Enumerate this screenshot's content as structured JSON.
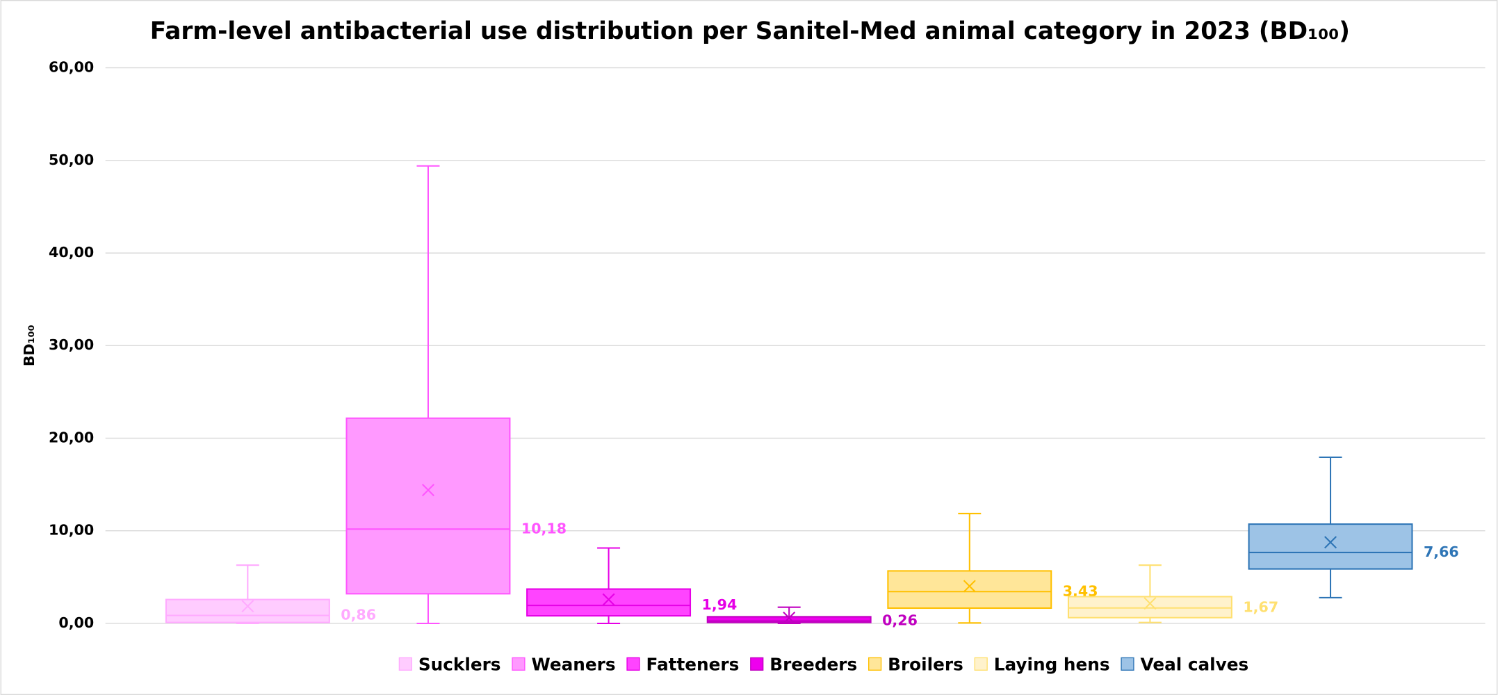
{
  "chart_data": {
    "type": "box",
    "title": "Farm-level antibacterial use distribution per Sanitel-Med animal category in 2023 (BD₁₀₀)",
    "ylabel": "BD₁₀₀",
    "ylim": [
      0,
      60
    ],
    "yticks": [
      {
        "value": 0,
        "label": "0,00"
      },
      {
        "value": 10,
        "label": "10,00"
      },
      {
        "value": 20,
        "label": "20,00"
      },
      {
        "value": 30,
        "label": "30,00"
      },
      {
        "value": 40,
        "label": "40,00"
      },
      {
        "value": 50,
        "label": "50,00"
      },
      {
        "value": 60,
        "label": "60,00"
      }
    ],
    "grid": true,
    "legend": "bottom",
    "series": [
      {
        "name": "Sucklers",
        "color": "#ffccff",
        "edge_color": "#ffaaff",
        "min": 0,
        "q1": 0.1,
        "median": 0.86,
        "q3": 2.58,
        "max": 6.29,
        "mean": 1.86,
        "median_label": "0,86"
      },
      {
        "name": "Weaners",
        "color": "#ff99ff",
        "edge_color": "#ff55ff",
        "min": 0,
        "q1": 3.2,
        "median": 10.18,
        "q3": 22.16,
        "max": 49.4,
        "mean": 14.4,
        "median_label": "10,18"
      },
      {
        "name": "Fatteners",
        "color": "#ff44ff",
        "edge_color": "#e600e6",
        "min": 0,
        "q1": 0.82,
        "median": 1.94,
        "q3": 3.71,
        "max": 8.14,
        "mean": 2.58,
        "median_label": "1,94"
      },
      {
        "name": "Breeders",
        "color": "#ee00ee",
        "edge_color": "#c000c0",
        "min": 0,
        "q1": 0.1,
        "median": 0.26,
        "q3": 0.72,
        "max": 1.75,
        "mean": 0.6,
        "median_label": "0,26"
      },
      {
        "name": "Broilers",
        "color": "#ffe699",
        "edge_color": "#ffc000",
        "min": 0.05,
        "q1": 1.65,
        "median": 3.43,
        "q3": 5.67,
        "max": 11.86,
        "mean": 4.02,
        "median_label": "3,43"
      },
      {
        "name": "Laying hens",
        "color": "#fff2cc",
        "edge_color": "#ffe070",
        "min": 0.1,
        "q1": 0.62,
        "median": 1.67,
        "q3": 2.89,
        "max": 6.29,
        "mean": 2.16,
        "median_label": "1,67"
      },
      {
        "name": "Veal calves",
        "color": "#9dc3e6",
        "edge_color": "#2e75b6",
        "min": 2.78,
        "q1": 5.88,
        "median": 7.66,
        "q3": 10.72,
        "max": 17.94,
        "mean": 8.76,
        "median_label": "7,66"
      }
    ]
  }
}
